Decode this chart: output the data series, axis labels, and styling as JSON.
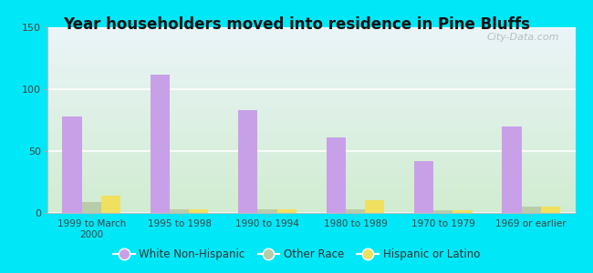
{
  "title": "Year householders moved into residence in Pine Bluffs",
  "categories": [
    "1999 to March\n2000",
    "1995 to 1998",
    "1990 to 1994",
    "1980 to 1989",
    "1970 to 1979",
    "1969 or earlier"
  ],
  "white_non_hispanic": [
    78,
    112,
    83,
    61,
    42,
    70
  ],
  "other_race": [
    9,
    3,
    3,
    3,
    2,
    5
  ],
  "hispanic_or_latino": [
    14,
    3,
    3,
    10,
    2,
    5
  ],
  "colors": {
    "white_non_hispanic": "#c8a0e8",
    "other_race": "#b8ccaa",
    "hispanic_or_latino": "#f0e060"
  },
  "ylim": [
    0,
    150
  ],
  "yticks": [
    0,
    50,
    100,
    150
  ],
  "background_outer": "#00e8f8",
  "background_plot_top": "#eaf4f8",
  "background_plot_bottom": "#d0ecd0",
  "watermark": "City-Data.com",
  "bar_width": 0.22,
  "legend_labels": [
    "White Non-Hispanic",
    "Other Race",
    "Hispanic or Latino"
  ]
}
